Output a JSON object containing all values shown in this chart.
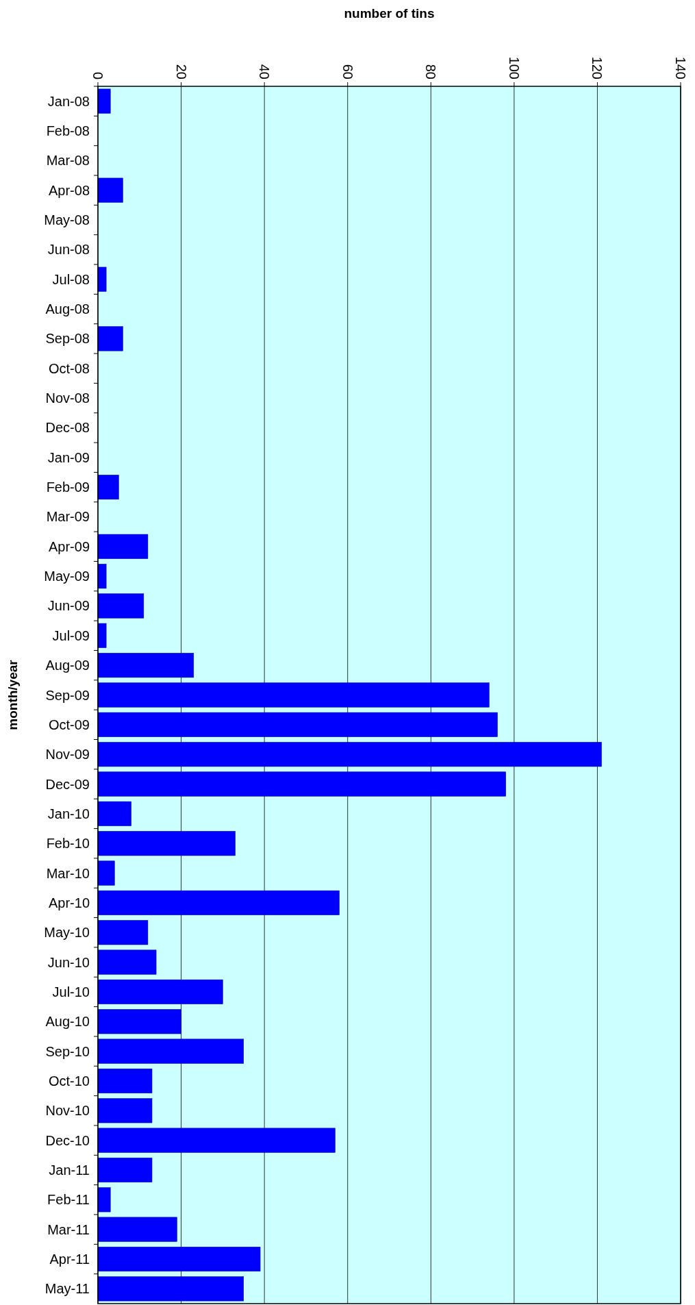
{
  "chart_data": {
    "type": "bar",
    "orientation": "horizontal",
    "xlabel": "number of tins",
    "ylabel": "month/year",
    "categories": [
      "Jan-08",
      "Feb-08",
      "Mar-08",
      "Apr-08",
      "May-08",
      "Jun-08",
      "Jul-08",
      "Aug-08",
      "Sep-08",
      "Oct-08",
      "Nov-08",
      "Dec-08",
      "Jan-09",
      "Feb-09",
      "Mar-09",
      "Apr-09",
      "May-09",
      "Jun-09",
      "Jul-09",
      "Aug-09",
      "Sep-09",
      "Oct-09",
      "Nov-09",
      "Dec-09",
      "Jan-10",
      "Feb-10",
      "Mar-10",
      "Apr-10",
      "May-10",
      "Jun-10",
      "Jul-10",
      "Aug-10",
      "Sep-10",
      "Oct-10",
      "Nov-10",
      "Dec-10",
      "Jan-11",
      "Feb-11",
      "Mar-11",
      "Apr-11",
      "May-11"
    ],
    "values": [
      3,
      0,
      0,
      6,
      0,
      0,
      2,
      0,
      6,
      0,
      0,
      0,
      0,
      5,
      0,
      12,
      2,
      11,
      2,
      23,
      94,
      96,
      121,
      98,
      8,
      33,
      4,
      58,
      12,
      14,
      30,
      20,
      35,
      13,
      13,
      57,
      13,
      3,
      19,
      39,
      35
    ],
    "color": "#0000ff",
    "xlim": [
      0,
      140
    ],
    "xticks": [
      0,
      20,
      40,
      60,
      80,
      100,
      120,
      140
    ],
    "grid": "x"
  }
}
